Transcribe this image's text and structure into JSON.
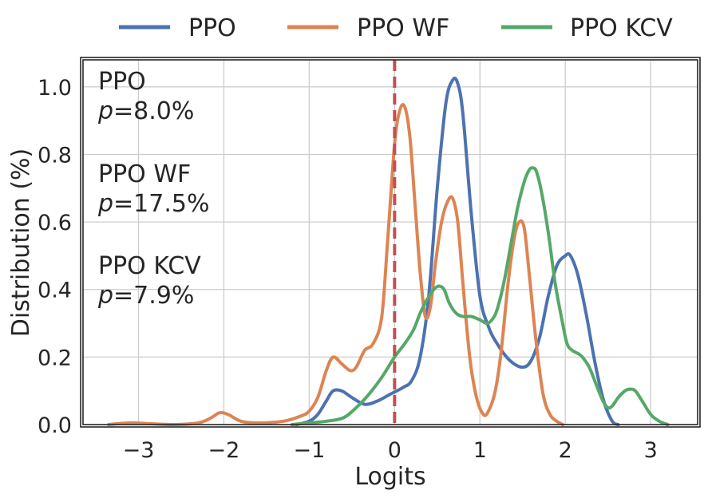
{
  "chart_data": {
    "type": "line",
    "title": "",
    "xlabel": "Logits",
    "ylabel": "Distribution (%)",
    "xlim": [
      -3.65,
      3.55
    ],
    "ylim": [
      0.0,
      1.08
    ],
    "grid": true,
    "legend_position": "top-center, above plot",
    "xticks": [
      -3,
      -2,
      -1,
      0,
      1,
      2,
      3
    ],
    "xtick_labels": [
      "−3",
      "−2",
      "−1",
      "0",
      "1",
      "2",
      "3"
    ],
    "yticks": [
      0.0,
      0.2,
      0.4,
      0.6,
      0.8,
      1.0
    ],
    "ytick_labels": [
      "0.0",
      "0.2",
      "0.4",
      "0.6",
      "0.8",
      "1.0"
    ],
    "reference_line": {
      "x": 0,
      "style": "dashed",
      "color": "#c44e52"
    },
    "series": [
      {
        "name": "PPO",
        "color": "#4c72b0",
        "x": [
          -1.15,
          -1.0,
          -0.9,
          -0.8,
          -0.72,
          -0.62,
          -0.5,
          -0.35,
          -0.2,
          -0.05,
          0.1,
          0.2,
          0.3,
          0.4,
          0.5,
          0.6,
          0.68,
          0.74,
          0.8,
          0.9,
          1.0,
          1.1,
          1.2,
          1.35,
          1.5,
          1.6,
          1.7,
          1.8,
          1.9,
          2.0,
          2.06,
          2.15,
          2.25,
          2.35,
          2.45,
          2.55,
          2.62
        ],
        "y": [
          0.0,
          0.01,
          0.03,
          0.07,
          0.1,
          0.1,
          0.08,
          0.06,
          0.07,
          0.09,
          0.11,
          0.13,
          0.2,
          0.38,
          0.7,
          0.95,
          1.02,
          1.01,
          0.92,
          0.62,
          0.38,
          0.29,
          0.24,
          0.19,
          0.17,
          0.19,
          0.26,
          0.38,
          0.47,
          0.5,
          0.5,
          0.44,
          0.32,
          0.18,
          0.07,
          0.01,
          0.0
        ]
      },
      {
        "name": "PPO WF",
        "color": "#dd8452",
        "x": [
          -3.35,
          -3.1,
          -2.9,
          -2.6,
          -2.3,
          -2.15,
          -2.05,
          -1.95,
          -1.8,
          -1.6,
          -1.3,
          -1.1,
          -1.0,
          -0.9,
          -0.8,
          -0.72,
          -0.62,
          -0.52,
          -0.45,
          -0.35,
          -0.25,
          -0.15,
          -0.08,
          0.0,
          0.06,
          0.12,
          0.18,
          0.24,
          0.3,
          0.36,
          0.42,
          0.48,
          0.55,
          0.62,
          0.68,
          0.74,
          0.8,
          0.88,
          0.96,
          1.04,
          1.1,
          1.18,
          1.25,
          1.33,
          1.4,
          1.46,
          1.52,
          1.58,
          1.66,
          1.74,
          1.82,
          1.9,
          1.97
        ],
        "y": [
          0.0,
          0.005,
          0.003,
          0.0,
          0.005,
          0.02,
          0.035,
          0.03,
          0.01,
          0.005,
          0.01,
          0.025,
          0.04,
          0.08,
          0.16,
          0.2,
          0.18,
          0.16,
          0.17,
          0.22,
          0.24,
          0.32,
          0.55,
          0.83,
          0.93,
          0.94,
          0.85,
          0.65,
          0.45,
          0.32,
          0.35,
          0.48,
          0.6,
          0.66,
          0.67,
          0.6,
          0.42,
          0.2,
          0.08,
          0.03,
          0.04,
          0.1,
          0.22,
          0.42,
          0.55,
          0.6,
          0.58,
          0.44,
          0.24,
          0.09,
          0.03,
          0.01,
          0.0
        ]
      },
      {
        "name": "PPO KCV",
        "color": "#55a868",
        "x": [
          -1.2,
          -1.0,
          -0.8,
          -0.6,
          -0.45,
          -0.3,
          -0.15,
          0.0,
          0.12,
          0.22,
          0.3,
          0.38,
          0.46,
          0.52,
          0.58,
          0.64,
          0.72,
          0.8,
          0.9,
          1.0,
          1.08,
          1.14,
          1.2,
          1.28,
          1.36,
          1.44,
          1.52,
          1.58,
          1.62,
          1.66,
          1.72,
          1.8,
          1.88,
          1.96,
          2.02,
          2.08,
          2.15,
          2.2,
          2.28,
          2.36,
          2.44,
          2.5,
          2.55,
          2.62,
          2.7,
          2.76,
          2.82,
          2.9,
          3.0,
          3.1,
          3.2
        ],
        "y": [
          0.0,
          0.005,
          0.01,
          0.02,
          0.05,
          0.09,
          0.14,
          0.2,
          0.24,
          0.28,
          0.33,
          0.37,
          0.4,
          0.41,
          0.4,
          0.36,
          0.33,
          0.32,
          0.32,
          0.31,
          0.3,
          0.31,
          0.34,
          0.42,
          0.53,
          0.64,
          0.72,
          0.755,
          0.76,
          0.75,
          0.69,
          0.57,
          0.42,
          0.31,
          0.24,
          0.22,
          0.21,
          0.2,
          0.17,
          0.12,
          0.07,
          0.05,
          0.055,
          0.08,
          0.1,
          0.105,
          0.1,
          0.07,
          0.03,
          0.01,
          0.0
        ]
      }
    ],
    "annotations": [
      {
        "name": "PPO",
        "p_symbol": "p",
        "p_text": "=8.0%"
      },
      {
        "name": "PPO WF",
        "p_symbol": "p",
        "p_text": "=17.5%"
      },
      {
        "name": "PPO KCV",
        "p_symbol": "p",
        "p_text": "=7.9%"
      }
    ]
  }
}
